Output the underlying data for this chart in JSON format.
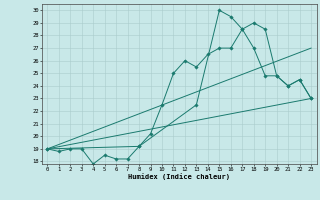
{
  "title": "",
  "xlabel": "Humidex (Indice chaleur)",
  "bg_color": "#c8e8e8",
  "line_color": "#1a7a6e",
  "grid_color": "#aacccc",
  "xlim": [
    -0.5,
    23.5
  ],
  "ylim": [
    17.8,
    30.5
  ],
  "yticks": [
    18,
    19,
    20,
    21,
    22,
    23,
    24,
    25,
    26,
    27,
    28,
    29,
    30
  ],
  "xticks": [
    0,
    1,
    2,
    3,
    4,
    5,
    6,
    7,
    8,
    9,
    10,
    11,
    12,
    13,
    14,
    15,
    16,
    17,
    18,
    19,
    20,
    21,
    22,
    23
  ],
  "line1_x": [
    0,
    1,
    2,
    3,
    4,
    5,
    6,
    7,
    8,
    9,
    10,
    11,
    12,
    13,
    14,
    15,
    16,
    17,
    18,
    19,
    20,
    21,
    22,
    23
  ],
  "line1_y": [
    19,
    18.8,
    19,
    19,
    17.8,
    18.5,
    18.2,
    18.2,
    19.2,
    20.2,
    22.5,
    25,
    26,
    25.5,
    26.5,
    27,
    27,
    28.5,
    29,
    28.5,
    24.8,
    24,
    24.5,
    23
  ],
  "line2_x": [
    0,
    8,
    13,
    15,
    16,
    17,
    18,
    19,
    20,
    21,
    22,
    23
  ],
  "line2_y": [
    19,
    19.2,
    22.5,
    30,
    29.5,
    28.5,
    27,
    24.8,
    24.8,
    24,
    24.5,
    23
  ],
  "line3_x": [
    0,
    23
  ],
  "line3_y": [
    19,
    27
  ],
  "line4_x": [
    0,
    23
  ],
  "line4_y": [
    19,
    23
  ]
}
